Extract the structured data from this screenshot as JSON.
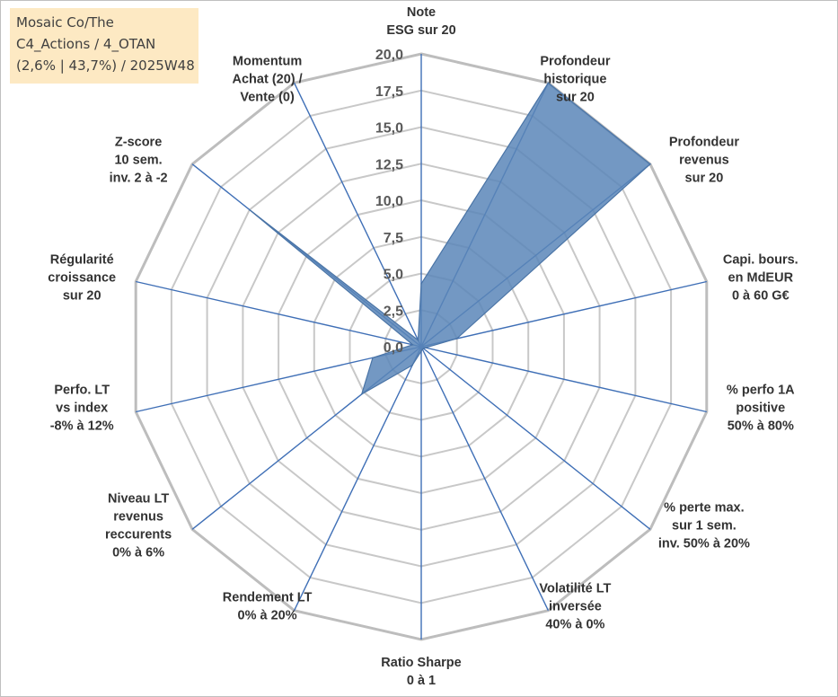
{
  "info_box": {
    "line1": "Mosaic Co/The",
    "line2": "C4_Actions / 4_OTAN",
    "line3": "(2,6% | 43,7%) / 2025W48"
  },
  "colors": {
    "fill": "#5b86b8",
    "stroke": "#4a74a6",
    "grid": "#c8c8c8",
    "outer_grid": "#bdbdbd",
    "spokes": "#3f6fb6",
    "info_bg": "#fde9c3"
  },
  "chart_data": {
    "type": "radar",
    "r_range": [
      0,
      20
    ],
    "ticks": [
      "0,0",
      "2,5",
      "5,0",
      "7,5",
      "10,0",
      "12,5",
      "15,0",
      "17,5",
      "20,0"
    ],
    "tick_values": [
      0,
      2.5,
      5,
      7.5,
      10,
      12.5,
      15,
      17.5,
      20
    ],
    "grid": true,
    "categories": [
      [
        "Note",
        "ESG sur 20"
      ],
      [
        "Profondeur",
        "historique",
        "sur 20"
      ],
      [
        "Profondeur",
        "revenus",
        "sur 20"
      ],
      [
        "Capi. bours.",
        "en MdEUR",
        "0 à 60 G€"
      ],
      [
        "% perfo 1A",
        "positive",
        "50% à 80%"
      ],
      [
        "% perte max.",
        "sur 1 sem.",
        "inv. 50% à 20%"
      ],
      [
        "Volatilité LT",
        "inversée",
        "40% à 0%"
      ],
      [
        "Ratio Sharpe",
        "0 à 1"
      ],
      [
        "Rendement LT",
        "0% à 20%"
      ],
      [
        "Niveau LT",
        "revenus",
        "reccurents",
        "0% à 6%"
      ],
      [
        "Perfo. LT",
        "vs index",
        "-8% à 12%"
      ],
      [
        "Régularité",
        "croissance",
        "sur 20"
      ],
      [
        "Z-score",
        "10 sem.",
        "inv. 2 à -2"
      ],
      [
        "Momentum",
        "Achat (20) /",
        "Vente (0)"
      ]
    ],
    "values": [
      4.3,
      20.0,
      20.0,
      2.5,
      0.3,
      0.2,
      0.2,
      0.3,
      1.4,
      5.2,
      3.4,
      0.6,
      15.0,
      0.5
    ]
  }
}
